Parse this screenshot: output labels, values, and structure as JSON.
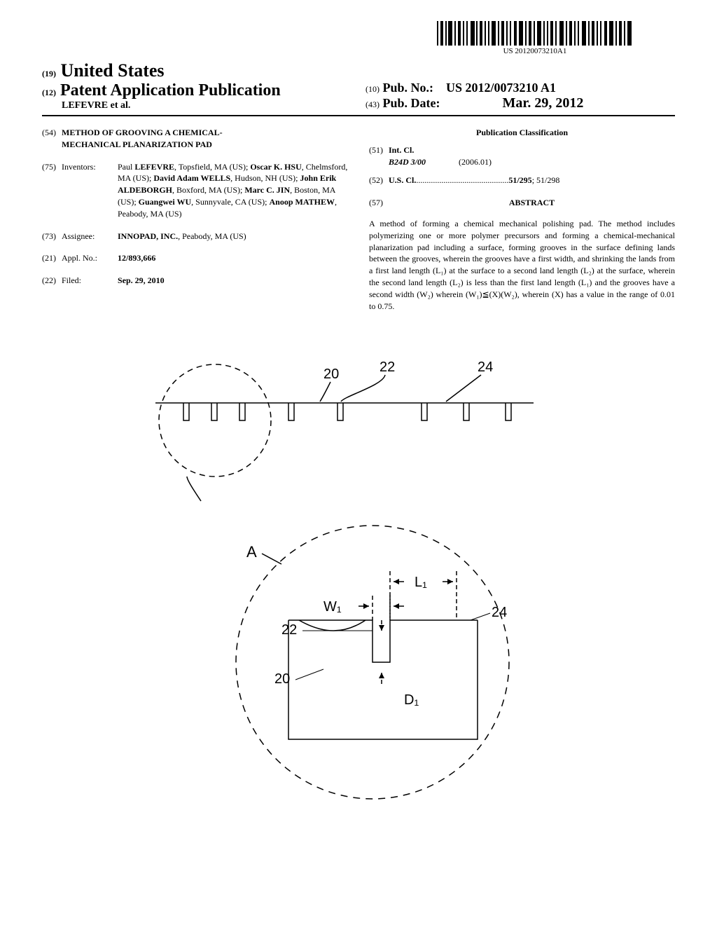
{
  "barcode": {
    "text": "US 20120073210A1"
  },
  "header": {
    "prefix19": "(19)",
    "country": "United States",
    "prefix12": "(12)",
    "pubType": "Patent Application Publication",
    "authors": "LEFEVRE et al.",
    "prefix10": "(10)",
    "pubNoLabel": "Pub. No.:",
    "pubNo": "US 2012/0073210 A1",
    "prefix43": "(43)",
    "pubDateLabel": "Pub. Date:",
    "pubDate": "Mar. 29, 2012"
  },
  "fields": {
    "54": "(54)",
    "75": "(75)",
    "73": "(73)",
    "21": "(21)",
    "22": "(22)",
    "51": "(51)",
    "52": "(52)",
    "57": "(57)"
  },
  "title": "METHOD OF GROOVING A CHEMICAL-MECHANICAL PLANARIZATION PAD",
  "inventors": {
    "label": "Inventors:",
    "list": "Paul <b>LEFEVRE</b>, Topsfield, MA (US); <b>Oscar K. HSU</b>, Chelmsford, MA (US); <b>David Adam WELLS</b>, Hudson, NH (US); <b>John Erik ALDEBORGH</b>, Boxford, MA (US); <b>Marc C. JIN</b>, Boston, MA (US); <b>Guangwei WU</b>, Sunnyvale, CA (US); <b>Anoop MATHEW</b>, Peabody, MA (US)"
  },
  "assignee": {
    "label": "Assignee:",
    "value": "<b>INNOPAD, INC.</b>, Peabody, MA (US)"
  },
  "applNo": {
    "label": "Appl. No.:",
    "value": "12/893,666"
  },
  "filed": {
    "label": "Filed:",
    "value": "Sep. 29, 2010"
  },
  "pubClass": {
    "title": "Publication Classification",
    "intClLabel": "Int. Cl.",
    "intClCode": "B24D 3/00",
    "intClDate": "(2006.01)",
    "usClLabel": "U.S. Cl.",
    "usClDots": " ............................................ ",
    "usClValue": "<b>51/295</b>; 51/298"
  },
  "abstract": {
    "label": "ABSTRACT",
    "text": "A method of forming a chemical mechanical polishing pad. The method includes polymerizing one or more polymer precursors and forming a chemical-mechanical planarization pad including a surface, forming grooves in the surface defining lands between the grooves, wherein the grooves have a first width, and shrinking the lands from a first land length (L₁) at the surface to a second land length (L₂) at the surface, wherein the second land length (L₂) is less than the first land length (L₁) and the grooves have a second width (W₂) wherein (W₁)≦(X)(W₂), wherein (X) has a value in the range of 0.01 to 0.75."
  },
  "figure": {
    "labels": {
      "n20": "20",
      "n22": "22",
      "n24": "24",
      "A": "A",
      "L1": "L₁",
      "W1": "W₁",
      "D1": "D₁"
    },
    "style": {
      "stroke": "#000000",
      "strokeWidth": 1.5,
      "fontFamily": "Arial, Helvetica, sans-serif",
      "fontSize": 20,
      "fontWeight": "normal"
    }
  }
}
